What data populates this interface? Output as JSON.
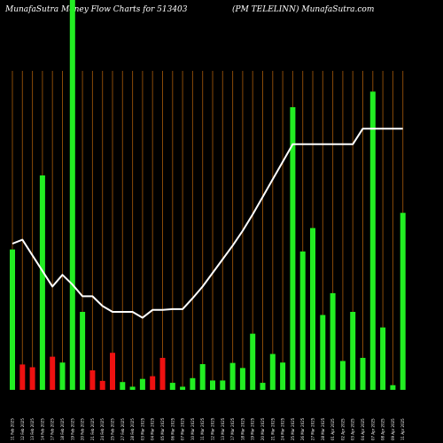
{
  "header": {
    "left_text": "MunafaSutra  Money Flow  Charts for 513403",
    "right_text": "(PM TELELINN) MunafaSutra.com"
  },
  "colors": {
    "background": "#000000",
    "gridline": "#8a4a08",
    "up_bar": "#22ee22",
    "down_bar": "#ee1111",
    "line": "#ffffff",
    "text": "#ffffff"
  },
  "chart_data": {
    "type": "bar",
    "title": "",
    "xlabel": "",
    "ylabel": "",
    "grid": true,
    "ylim": [
      0,
      100
    ],
    "categories": [
      "11 Feb 2025",
      "12 Feb 2025",
      "13 Feb 2025",
      "14 Feb 2025",
      "17 Feb 2025",
      "18 Feb 2025",
      "19 Feb 2025",
      "20 Feb 2025",
      "21 Feb 2025",
      "24 Feb 2025",
      "25 Feb 2025",
      "27 Feb 2025",
      "28 Feb 2025",
      "03 Mar 2025",
      "04 Mar 2025",
      "05 Mar 2025",
      "06 Mar 2025",
      "07 Mar 2025",
      "10 Mar 2025",
      "11 Mar 2025",
      "12 Mar 2025",
      "13 Mar 2025",
      "17 Mar 2025",
      "18 Mar 2025",
      "19 Mar 2025",
      "20 Mar 2025",
      "21 Mar 2025",
      "24 Mar 2025",
      "25 Mar 2025",
      "26 Mar 2025",
      "27 Mar 2025",
      "28 Mar 2025",
      "01 Apr 2025",
      "02 Apr 2025",
      "03 Apr 2025",
      "04 Apr 2025",
      "07 Apr 2025",
      "08 Apr 2025",
      "09 Apr 2025",
      "11 Apr 2025"
    ],
    "flow_direction": [
      "up",
      "down",
      "down",
      "up",
      "down",
      "up",
      "up",
      "up",
      "down",
      "down",
      "down",
      "up",
      "up",
      "up",
      "down",
      "down",
      "up",
      "up",
      "up",
      "up",
      "up",
      "up",
      "up",
      "up",
      "up",
      "up",
      "up",
      "up",
      "up",
      "up",
      "up",
      "up",
      "up",
      "up",
      "up",
      "up",
      "up",
      "up",
      "up",
      "up"
    ],
    "values": [
      36.0,
      6.5,
      5.8,
      55.0,
      8.5,
      7.0,
      100.0,
      20.0,
      5.0,
      2.3,
      9.5,
      2.0,
      0.8,
      2.8,
      3.5,
      8.2,
      1.8,
      0.8,
      3.0,
      6.6,
      2.4,
      2.4,
      6.9,
      5.6,
      14.4,
      1.8,
      9.2,
      7.0,
      72.5,
      35.5,
      41.5,
      19.2,
      24.8,
      7.4,
      20.0,
      8.2,
      76.5,
      16.0,
      1.2,
      45.4
    ],
    "line_values": [
      37.5,
      38.5,
      34.5,
      30.5,
      26.5,
      29.5,
      27.0,
      24.0,
      24.0,
      21.5,
      20.0,
      20.0,
      20.0,
      18.5,
      20.5,
      20.5,
      20.7,
      20.7,
      23.5,
      26.5,
      30.0,
      33.5,
      37.0,
      40.8,
      45.0,
      49.5,
      54.0,
      58.5,
      63.0,
      63.0,
      63.0,
      63.0,
      63.0,
      63.0,
      63.0,
      67.0,
      67.0,
      67.0,
      67.0,
      67.0
    ]
  }
}
